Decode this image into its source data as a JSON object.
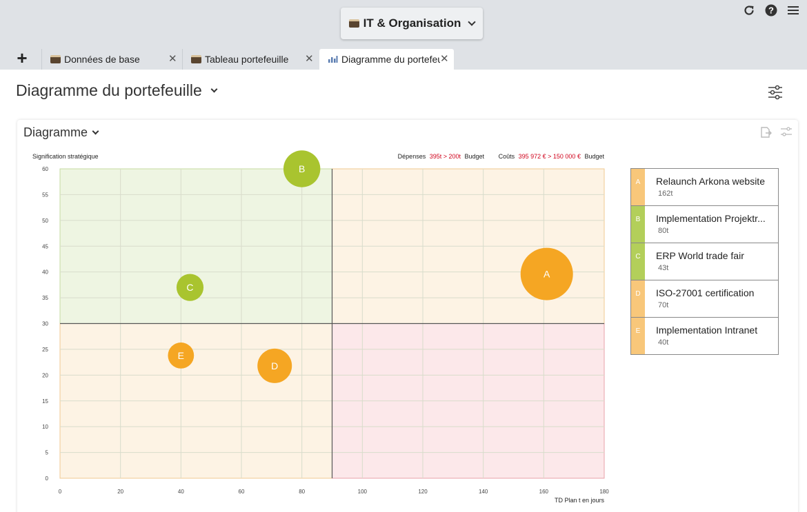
{
  "header": {
    "workspace_label": "IT & Organisation"
  },
  "tabs": [
    {
      "label": "Données de base"
    },
    {
      "label": "Tableau portefeuille"
    },
    {
      "label": "Diagramme du portefeuille"
    }
  ],
  "page": {
    "title": "Diagramme du portefeuille"
  },
  "card": {
    "title": "Diagramme"
  },
  "chart_header": {
    "y_label": "Signification stratégique",
    "depenses_label": "Dépenses",
    "depenses_value": "395t > 200t",
    "depenses_suffix": "Budget",
    "couts_label": "Coûts",
    "couts_value": "395 972 € > 150 000 €",
    "couts_suffix": "Budget",
    "x_label": "TD Plan t en jours"
  },
  "colors": {
    "orange": "#f5a623",
    "green": "#a9c42f",
    "quadrant_green": "#eef5e2",
    "quadrant_orange": "#fdf3e4",
    "quadrant_red": "#fce8ea",
    "alert_red": "#d0021b"
  },
  "chart_data": {
    "type": "scatter",
    "title": "",
    "xlabel": "TD Plan t en jours",
    "ylabel": "Signification stratégique",
    "xlim": [
      0,
      180
    ],
    "ylim": [
      0,
      60
    ],
    "xticks": [
      0,
      20,
      40,
      60,
      80,
      100,
      120,
      140,
      160,
      180
    ],
    "yticks": [
      0,
      5,
      10,
      15,
      20,
      25,
      30,
      35,
      40,
      45,
      50,
      55,
      60
    ],
    "quadrant_split": {
      "x": 90,
      "y": 30
    },
    "grid": true,
    "points": [
      {
        "letter": "A",
        "name": "Relaunch Arkona website",
        "size_label": "162t",
        "size": 162,
        "x": 161,
        "y": 39.6,
        "color": "#f5a623"
      },
      {
        "letter": "B",
        "name": "Implementation Projektr...",
        "size_label": "80t",
        "size": 80,
        "x": 80,
        "y": 60,
        "color": "#a9c42f"
      },
      {
        "letter": "C",
        "name": "ERP World trade fair",
        "size_label": "43t",
        "size": 43,
        "x": 43,
        "y": 37,
        "color": "#a9c42f"
      },
      {
        "letter": "D",
        "name": "ISO-27001 certification",
        "size_label": "70t",
        "size": 70,
        "x": 71,
        "y": 21.8,
        "color": "#f5a623"
      },
      {
        "letter": "E",
        "name": "Implementation Intranet",
        "size_label": "40t",
        "size": 40,
        "x": 40,
        "y": 23.8,
        "color": "#f5a623"
      }
    ]
  }
}
